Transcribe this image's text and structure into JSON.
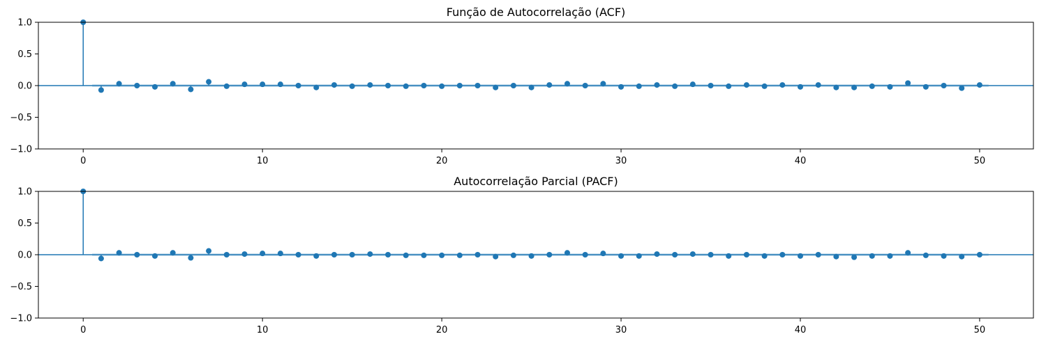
{
  "colors": {
    "stem": "#1f77b4",
    "band": "#1f77b4",
    "axis": "#000000"
  },
  "chart_data": [
    {
      "type": "scatter",
      "subtype": "stem-correlogram",
      "title": "Função de Autocorrelação (ACF)",
      "xlabel": "",
      "ylabel": "",
      "xlim": [
        -2.5,
        53
      ],
      "ylim": [
        -1,
        1
      ],
      "xticks": [
        0,
        10,
        20,
        30,
        40,
        50
      ],
      "yticks": [
        -1.0,
        -0.5,
        0.0,
        0.5,
        1.0
      ],
      "ytick_labels": [
        "−1.0",
        "−0.5",
        "0.0",
        "0.5",
        "1.0"
      ],
      "confidence_band": 0.02,
      "lags": [
        0,
        1,
        2,
        3,
        4,
        5,
        6,
        7,
        8,
        9,
        10,
        11,
        12,
        13,
        14,
        15,
        16,
        17,
        18,
        19,
        20,
        21,
        22,
        23,
        24,
        25,
        26,
        27,
        28,
        29,
        30,
        31,
        32,
        33,
        34,
        35,
        36,
        37,
        38,
        39,
        40,
        41,
        42,
        43,
        44,
        45,
        46,
        47,
        48,
        49,
        50
      ],
      "values": [
        1.0,
        -0.07,
        0.03,
        0.0,
        -0.02,
        0.03,
        -0.06,
        0.06,
        -0.01,
        0.02,
        0.02,
        0.02,
        0.0,
        -0.03,
        0.01,
        -0.01,
        0.01,
        0.0,
        -0.01,
        0.0,
        -0.01,
        0.0,
        0.0,
        -0.03,
        0.0,
        -0.03,
        0.01,
        0.03,
        0.0,
        0.03,
        -0.02,
        -0.01,
        0.01,
        -0.01,
        0.02,
        0.0,
        -0.01,
        0.01,
        -0.01,
        0.01,
        -0.02,
        0.01,
        -0.03,
        -0.03,
        -0.01,
        -0.02,
        0.04,
        -0.02,
        0.0,
        -0.04,
        0.01
      ],
      "grid": false,
      "legend": "none"
    },
    {
      "type": "scatter",
      "subtype": "stem-correlogram",
      "title": "Autocorrelação Parcial (PACF)",
      "xlabel": "",
      "ylabel": "",
      "xlim": [
        -2.5,
        53
      ],
      "ylim": [
        -1,
        1
      ],
      "xticks": [
        0,
        10,
        20,
        30,
        40,
        50
      ],
      "yticks": [
        -1.0,
        -0.5,
        0.0,
        0.5,
        1.0
      ],
      "ytick_labels": [
        "−1.0",
        "−0.5",
        "0.0",
        "0.5",
        "1.0"
      ],
      "confidence_band": 0.02,
      "lags": [
        0,
        1,
        2,
        3,
        4,
        5,
        6,
        7,
        8,
        9,
        10,
        11,
        12,
        13,
        14,
        15,
        16,
        17,
        18,
        19,
        20,
        21,
        22,
        23,
        24,
        25,
        26,
        27,
        28,
        29,
        30,
        31,
        32,
        33,
        34,
        35,
        36,
        37,
        38,
        39,
        40,
        41,
        42,
        43,
        44,
        45,
        46,
        47,
        48,
        49,
        50
      ],
      "values": [
        1.0,
        -0.06,
        0.03,
        0.0,
        -0.02,
        0.03,
        -0.05,
        0.06,
        0.0,
        0.01,
        0.02,
        0.02,
        0.0,
        -0.02,
        0.0,
        0.0,
        0.01,
        0.0,
        -0.01,
        -0.01,
        -0.01,
        -0.01,
        0.0,
        -0.03,
        -0.01,
        -0.02,
        0.0,
        0.03,
        0.0,
        0.02,
        -0.02,
        -0.02,
        0.01,
        0.0,
        0.01,
        0.0,
        -0.02,
        0.0,
        -0.02,
        0.0,
        -0.02,
        0.0,
        -0.03,
        -0.04,
        -0.02,
        -0.02,
        0.03,
        -0.01,
        -0.02,
        -0.03,
        0.0
      ],
      "grid": false,
      "legend": "none"
    }
  ]
}
